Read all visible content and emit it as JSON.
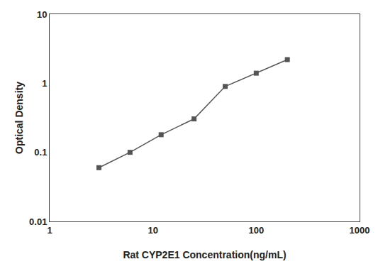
{
  "chart_data": {
    "type": "line",
    "xlabel": "Rat CYP2E1 Concentration(ng/mL)",
    "ylabel": "Optical Density",
    "x": [
      3,
      6,
      12,
      25,
      50,
      100,
      200
    ],
    "values": [
      0.06,
      0.1,
      0.18,
      0.305,
      0.9,
      1.4,
      2.2
    ],
    "xlim": [
      1,
      1000
    ],
    "ylim": [
      0.01,
      10
    ],
    "xticks": [
      1,
      10,
      100,
      1000
    ],
    "yticks": [
      0.01,
      0.1,
      1,
      10
    ],
    "log": true,
    "grid": false,
    "color": "#555555",
    "marker": "square"
  }
}
